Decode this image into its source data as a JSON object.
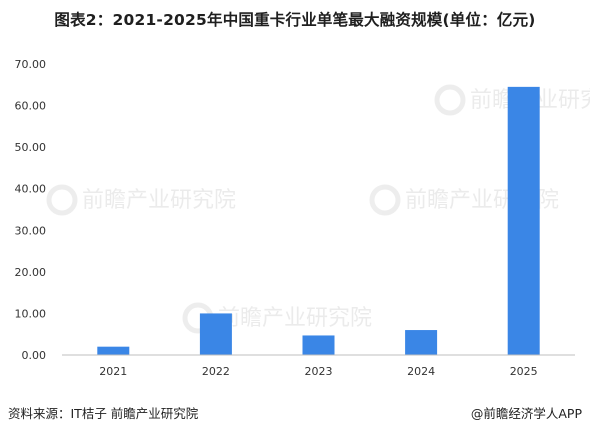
{
  "title": "图表2：2021-2025年中国重卡行业单笔最大融资规模(单位：亿元)",
  "source": "资料来源：IT桔子 前瞻产业研究院",
  "credit": "@前瞻经济学人APP",
  "watermark": "前瞻产业研究院",
  "colors": {
    "bar": "#3a86e6",
    "axis": "#bfbfbf",
    "tick_text": "#333333"
  },
  "chart_data": {
    "type": "bar",
    "title": "图表2：2021-2025年中国重卡行业单笔最大融资规模(单位：亿元)",
    "categories": [
      "2021",
      "2022",
      "2023",
      "2024",
      "2025"
    ],
    "values": [
      2.0,
      10.0,
      4.7,
      6.0,
      64.5
    ],
    "yticks": [
      "0.00",
      "10.00",
      "20.00",
      "30.00",
      "40.00",
      "50.00",
      "60.00",
      "70.00"
    ],
    "ylim": [
      0,
      70
    ],
    "xlabel": "",
    "ylabel": "",
    "grid": false,
    "legend": "none"
  }
}
